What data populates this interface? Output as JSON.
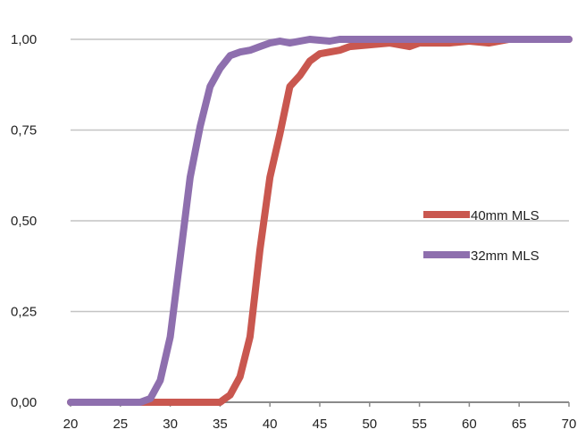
{
  "chart_data": {
    "type": "line",
    "title": "",
    "xlabel": "",
    "ylabel": "",
    "xlim": [
      20,
      70
    ],
    "ylim": [
      0,
      1
    ],
    "x_ticks": [
      "20",
      "25",
      "30",
      "35",
      "40",
      "45",
      "50",
      "55",
      "60",
      "65",
      "70"
    ],
    "y_ticks": [
      "0,00",
      "0,25",
      "0,50",
      "0,75",
      "1,00"
    ],
    "grid": "horizontal",
    "legend_position": "right",
    "series": [
      {
        "name": "40mm MLS",
        "color": "#c9574f",
        "points": [
          [
            20,
            0
          ],
          [
            25,
            0
          ],
          [
            30,
            0
          ],
          [
            34,
            0
          ],
          [
            35,
            0
          ],
          [
            35.5,
            0.01
          ],
          [
            36,
            0.02
          ],
          [
            37,
            0.07
          ],
          [
            38,
            0.18
          ],
          [
            38.5,
            0.3
          ],
          [
            39,
            0.42
          ],
          [
            40,
            0.62
          ],
          [
            41,
            0.74
          ],
          [
            42,
            0.87
          ],
          [
            43,
            0.9
          ],
          [
            44,
            0.94
          ],
          [
            45,
            0.96
          ],
          [
            47,
            0.97
          ],
          [
            48,
            0.98
          ],
          [
            50,
            0.985
          ],
          [
            52,
            0.99
          ],
          [
            54,
            0.98
          ],
          [
            55,
            0.99
          ],
          [
            58,
            0.99
          ],
          [
            60,
            0.995
          ],
          [
            62,
            0.99
          ],
          [
            64,
            1
          ],
          [
            70,
            1
          ]
        ]
      },
      {
        "name": "32mm MLS",
        "color": "#8e6fae",
        "points": [
          [
            20,
            0
          ],
          [
            25,
            0
          ],
          [
            27,
            0
          ],
          [
            28,
            0.01
          ],
          [
            29,
            0.06
          ],
          [
            30,
            0.18
          ],
          [
            31,
            0.4
          ],
          [
            32,
            0.62
          ],
          [
            33,
            0.76
          ],
          [
            34,
            0.87
          ],
          [
            35,
            0.92
          ],
          [
            36,
            0.955
          ],
          [
            37,
            0.965
          ],
          [
            38,
            0.97
          ],
          [
            39,
            0.98
          ],
          [
            40,
            0.99
          ],
          [
            41,
            0.995
          ],
          [
            42,
            0.99
          ],
          [
            44,
            1
          ],
          [
            46,
            0.995
          ],
          [
            47,
            1
          ],
          [
            70,
            1
          ]
        ]
      }
    ]
  }
}
